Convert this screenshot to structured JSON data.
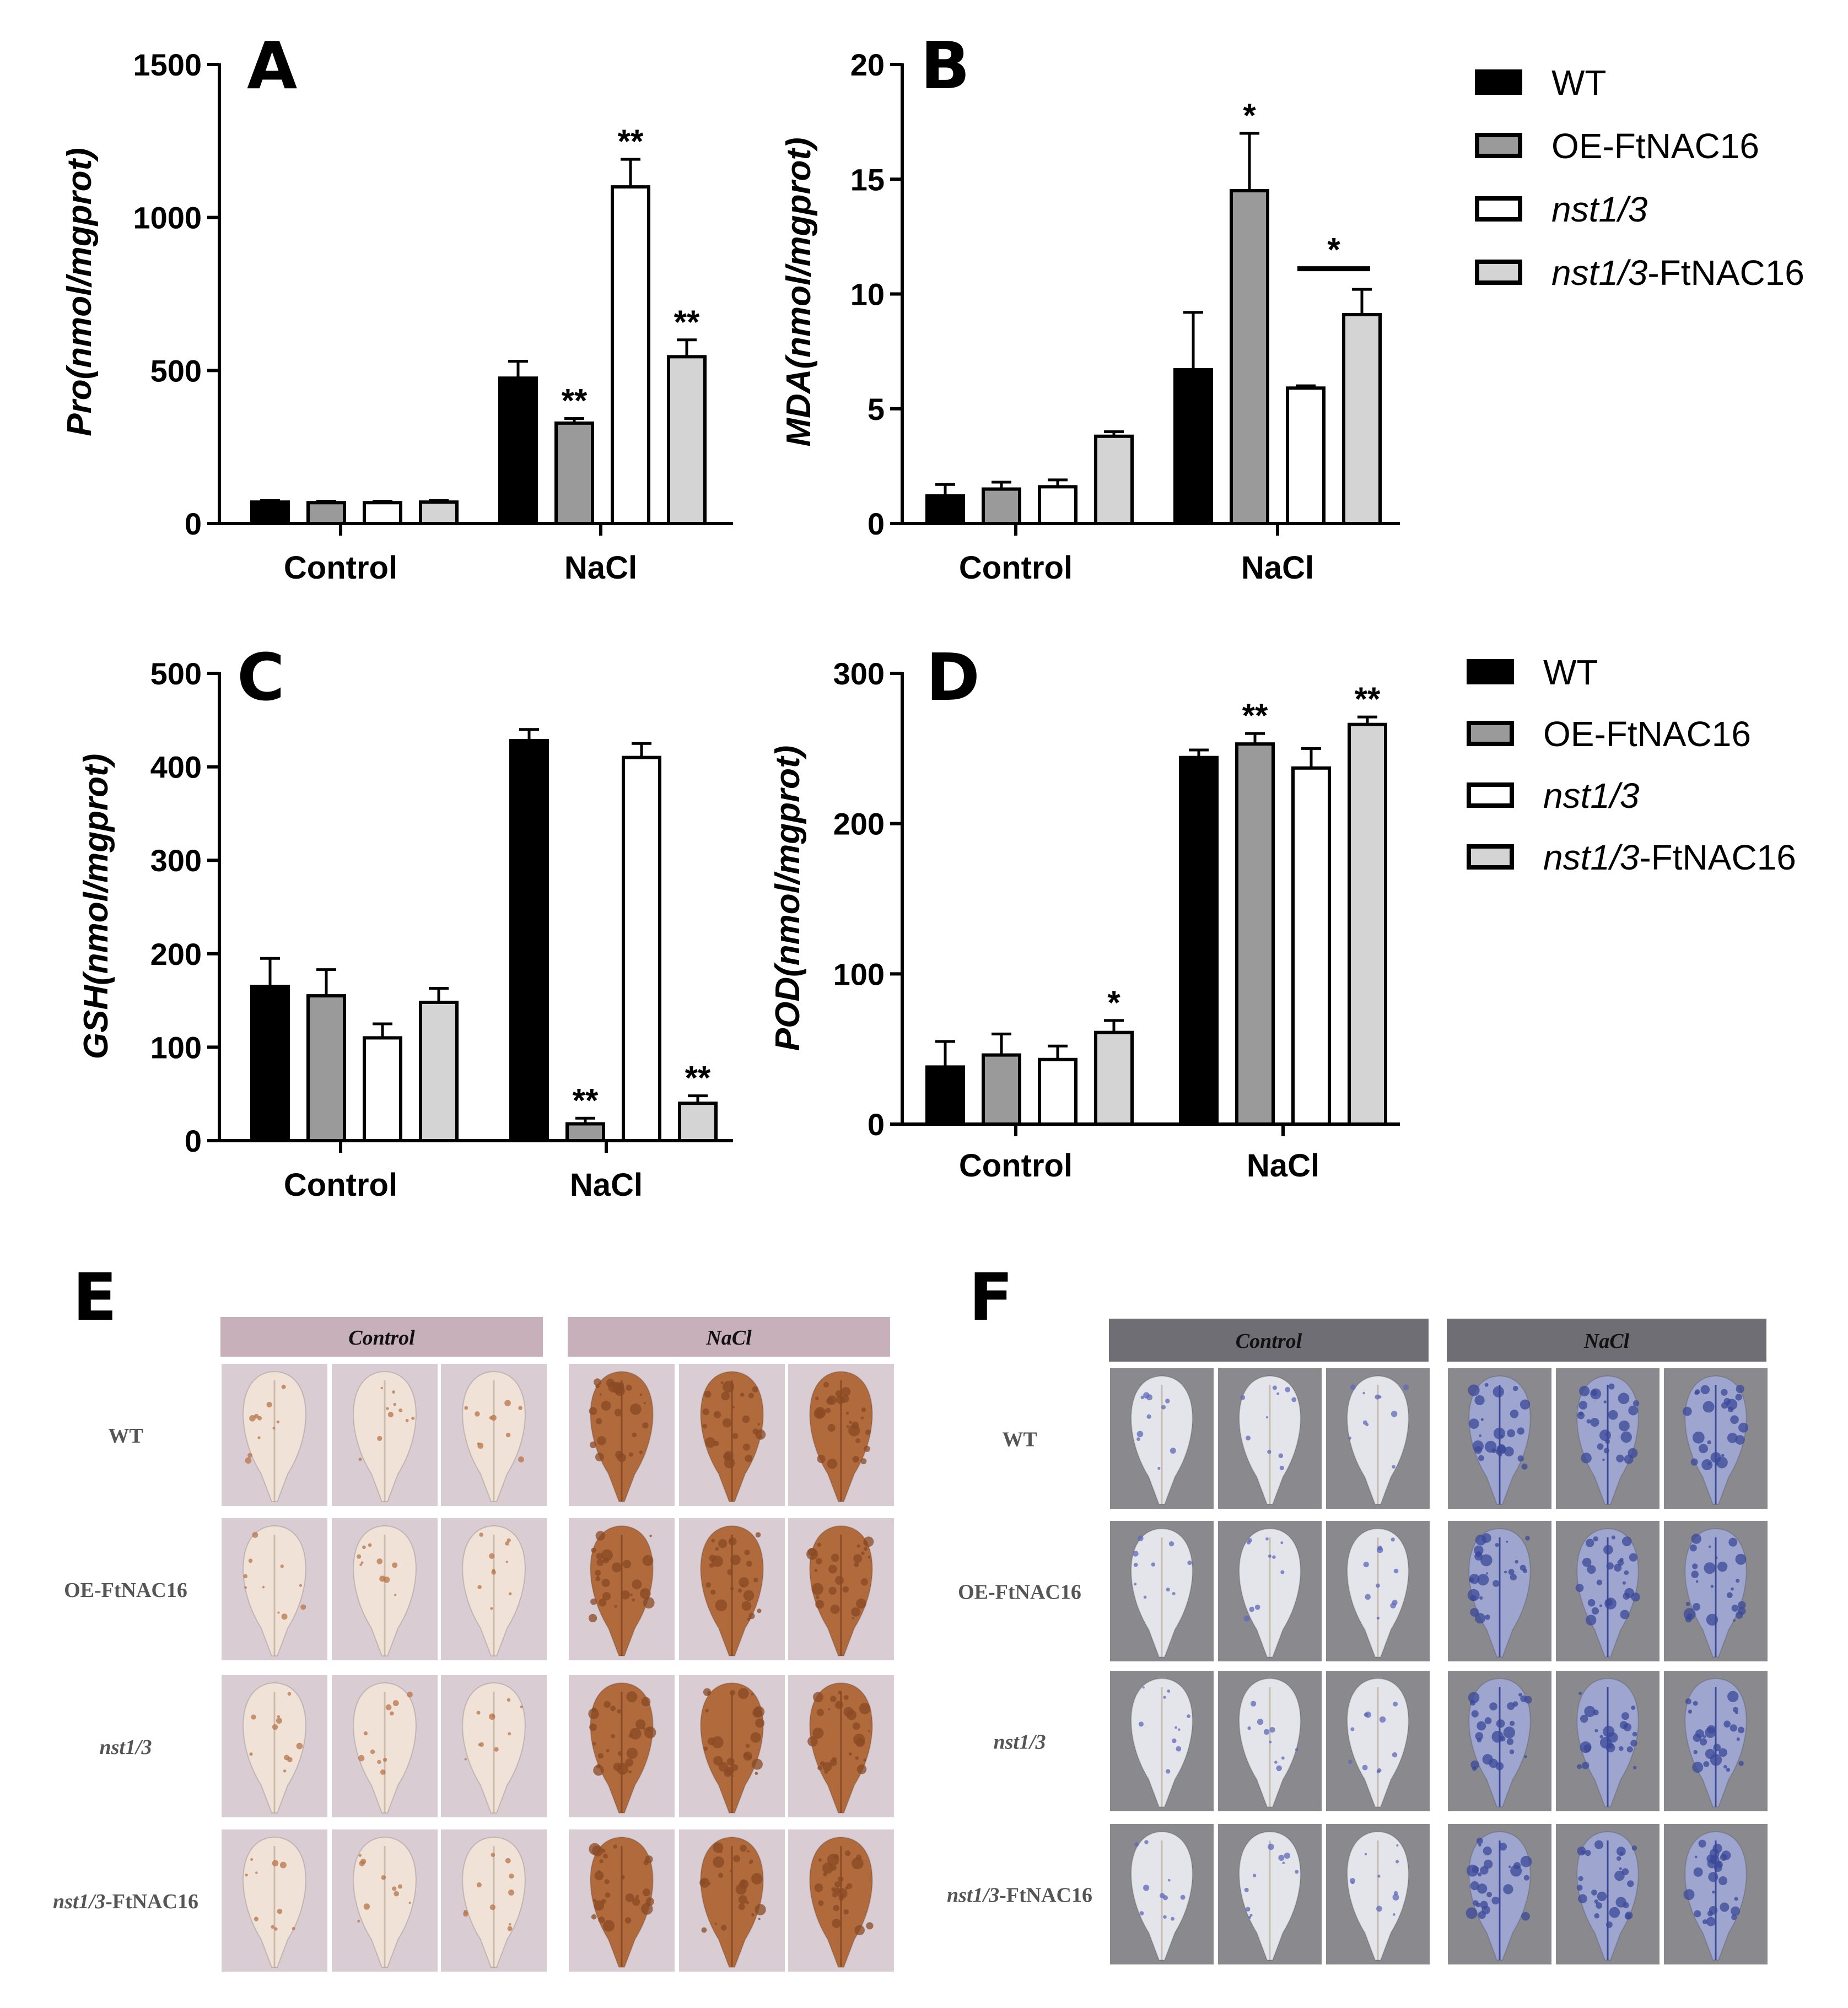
{
  "chart_data": [
    {
      "panel": "A",
      "type": "bar",
      "ylabel": "Pro(nmol/mgprot)",
      "ylim": [
        0,
        1500
      ],
      "yticks": [
        "0",
        "500",
        "1000",
        "1500"
      ],
      "categories": [
        "Control",
        "NaCl"
      ],
      "series": [
        {
          "name": "WT",
          "values": [
            70,
            475
          ],
          "errors": [
            5,
            55
          ],
          "sig": [
            "",
            ""
          ]
        },
        {
          "name": "OE-FtNAC16",
          "values": [
            68,
            328
          ],
          "errors": [
            5,
            15
          ],
          "sig": [
            "",
            "**"
          ]
        },
        {
          "name": "nst1/3",
          "values": [
            68,
            1100
          ],
          "errors": [
            5,
            90
          ],
          "sig": [
            "",
            "**"
          ]
        },
        {
          "name": "nst1/3-FtNAC16",
          "values": [
            70,
            545
          ],
          "errors": [
            5,
            55
          ],
          "sig": [
            "",
            "**"
          ]
        }
      ]
    },
    {
      "panel": "B",
      "type": "bar",
      "ylabel": "MDA(nmol/mgprot)",
      "ylim": [
        0,
        20
      ],
      "yticks": [
        "0",
        "5",
        "10",
        "15",
        "20"
      ],
      "categories": [
        "Control",
        "NaCl"
      ],
      "series": [
        {
          "name": "WT",
          "values": [
            1.2,
            6.7
          ],
          "errors": [
            0.5,
            2.5
          ],
          "sig": [
            "",
            ""
          ]
        },
        {
          "name": "OE-FtNAC16",
          "values": [
            1.5,
            14.5
          ],
          "errors": [
            0.3,
            2.5
          ],
          "sig": [
            "",
            "*"
          ]
        },
        {
          "name": "nst1/3",
          "values": [
            1.6,
            5.9
          ],
          "errors": [
            0.3,
            0.1
          ],
          "sig": [
            "",
            ""
          ]
        },
        {
          "name": "nst1/3-FtNAC16",
          "values": [
            3.8,
            9.1
          ],
          "errors": [
            0.2,
            1.1
          ],
          "sig": [
            "",
            ""
          ]
        }
      ],
      "bracket": {
        "between": [
          "nst1/3",
          "nst1/3-FtNAC16"
        ],
        "category": "NaCl",
        "label": "*"
      }
    },
    {
      "panel": "C",
      "type": "bar",
      "ylabel": "GSH(nmol/mgprot)",
      "ylim": [
        0,
        500
      ],
      "yticks": [
        "0",
        "100",
        "200",
        "300",
        "400",
        "500"
      ],
      "categories": [
        "Control",
        "NaCl"
      ],
      "series": [
        {
          "name": "WT",
          "values": [
            165,
            428
          ],
          "errors": [
            30,
            12
          ],
          "sig": [
            "",
            ""
          ]
        },
        {
          "name": "OE-FtNAC16",
          "values": [
            155,
            18
          ],
          "errors": [
            28,
            6
          ],
          "sig": [
            "",
            "**"
          ]
        },
        {
          "name": "nst1/3",
          "values": [
            110,
            410
          ],
          "errors": [
            15,
            15
          ],
          "sig": [
            "",
            ""
          ]
        },
        {
          "name": "nst1/3-FtNAC16",
          "values": [
            148,
            40
          ],
          "errors": [
            15,
            8
          ],
          "sig": [
            "",
            "**"
          ]
        }
      ]
    },
    {
      "panel": "D",
      "type": "bar",
      "ylabel": "POD(nmol/mgprot)",
      "ylim": [
        0,
        300
      ],
      "yticks": [
        "0",
        "100",
        "200",
        "300"
      ],
      "categories": [
        "Control",
        "NaCl"
      ],
      "series": [
        {
          "name": "WT",
          "values": [
            38,
            244
          ],
          "errors": [
            17,
            5
          ],
          "sig": [
            "",
            ""
          ]
        },
        {
          "name": "OE-FtNAC16",
          "values": [
            46,
            253
          ],
          "errors": [
            14,
            7
          ],
          "sig": [
            "",
            "**"
          ]
        },
        {
          "name": "nst1/3",
          "values": [
            43,
            237
          ],
          "errors": [
            9,
            13
          ],
          "sig": [
            "",
            ""
          ]
        },
        {
          "name": "nst1/3-FtNAC16",
          "values": [
            61,
            266
          ],
          "errors": [
            8,
            5
          ],
          "sig": [
            "*",
            "**"
          ]
        }
      ]
    }
  ],
  "legend_top": [
    {
      "label": "WT",
      "italic_part": "",
      "rest": "WT"
    },
    {
      "label": "OE-FtNAC16",
      "italic_part": "",
      "rest": "OE-FtNAC16"
    },
    {
      "label": "nst1/3",
      "italic_part": "nst1/3",
      "rest": ""
    },
    {
      "label": "nst1/3-FtNAC16",
      "italic_part": "nst1/3",
      "rest": "-FtNAC16"
    }
  ],
  "legend_bottom": [
    {
      "label": "WT",
      "italic_part": "",
      "rest": "WT"
    },
    {
      "label": "OE-FtNAC16",
      "italic_part": "",
      "rest": "OE-FtNAC16"
    },
    {
      "label": "nst1/3",
      "italic_part": "nst1/3",
      "rest": ""
    },
    {
      "label": "nst1/3-FtNAC16",
      "italic_part": "nst1/3",
      "rest": "-FtNAC16"
    }
  ],
  "series_colors": [
    "#000000",
    "#9a9a9a",
    "#ffffff",
    "#d4d4d4"
  ],
  "photo_panels": [
    {
      "letter": "E",
      "stain": "brown",
      "header_color": "#c8b0ba",
      "leaf_bg": "#d9ccd3",
      "headers": [
        "Control",
        "NaCl"
      ],
      "rows": [
        {
          "label": "WT",
          "italic": false
        },
        {
          "label": "OE-FtNAC16",
          "italic": false
        },
        {
          "label": "nst1/3",
          "italic": true
        },
        {
          "label": "nst1/3-FtNAC16",
          "italic": true,
          "italic_part": "nst1/3",
          "rest": "-FtNAC16"
        }
      ]
    },
    {
      "letter": "F",
      "stain": "blue",
      "header_color": "#6e6e74",
      "leaf_bg": "#8a8a8e",
      "headers": [
        "Control",
        "NaCl"
      ],
      "rows": [
        {
          "label": "WT",
          "italic": false
        },
        {
          "label": "OE-FtNAC16",
          "italic": false
        },
        {
          "label": "nst1/3",
          "italic": true
        },
        {
          "label": "nst1/3-FtNAC16",
          "italic": true,
          "italic_part": "nst1/3",
          "rest": "-FtNAC16"
        }
      ]
    }
  ]
}
